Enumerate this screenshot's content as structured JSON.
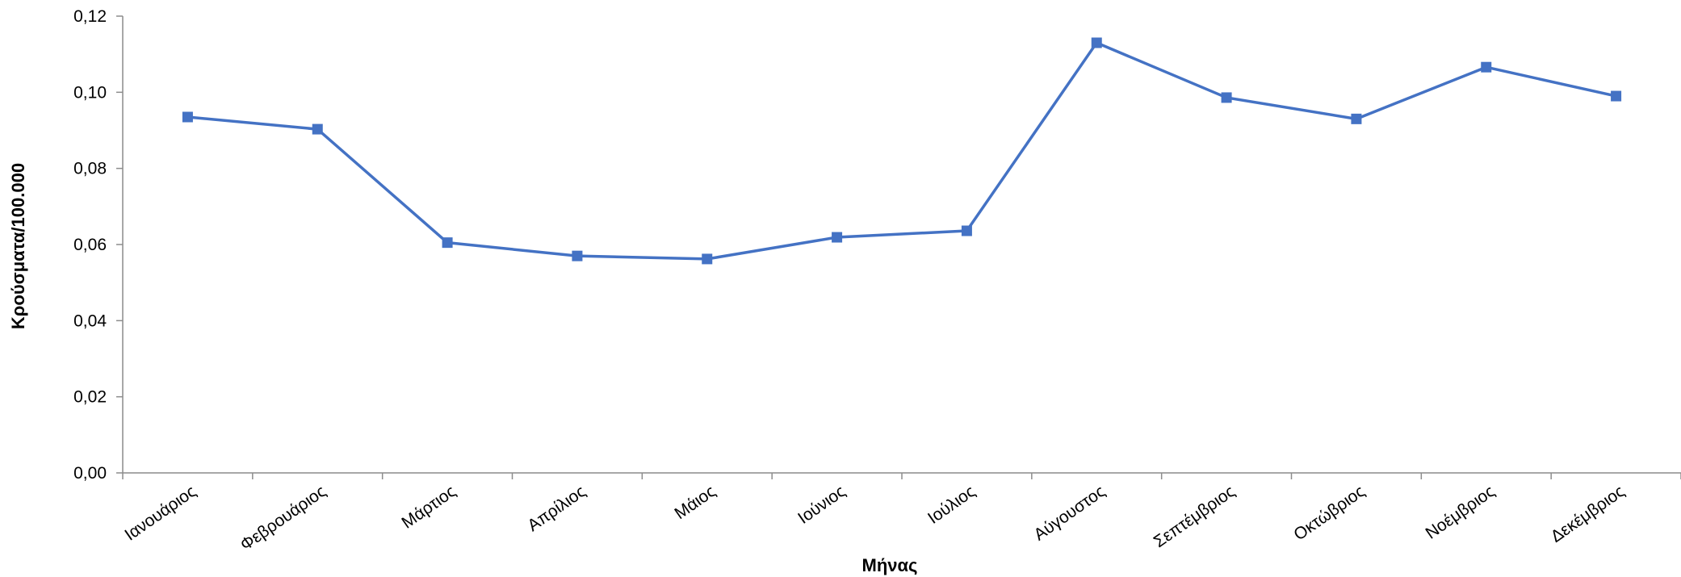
{
  "chart_data": {
    "type": "line",
    "title": "",
    "xlabel": "Μήνας",
    "ylabel": "Κρούσματα/100.000",
    "categories": [
      "Ιανουάριος",
      "Φεβρουάριος",
      "Μάρτιος",
      "Απρίλιος",
      "Μάιος",
      "Ιούνιος",
      "Ιούλιος",
      "Αύγουστος",
      "Σεπτέμβριος",
      "Οκτώβριος",
      "Νοέμβριος",
      "Δεκέμβριος"
    ],
    "series": [
      {
        "values": [
          0.0935,
          0.0903,
          0.0605,
          0.057,
          0.0562,
          0.0619,
          0.0636,
          0.113,
          0.0986,
          0.093,
          0.1066,
          0.099
        ],
        "color": "#4472C4",
        "marker": "square"
      }
    ],
    "ylim": [
      0,
      0.12
    ],
    "yticks": [
      "0,00",
      "0,02",
      "0,04",
      "0,06",
      "0,08",
      "0,10",
      "0,12"
    ],
    "grid": false,
    "legend": "none"
  }
}
